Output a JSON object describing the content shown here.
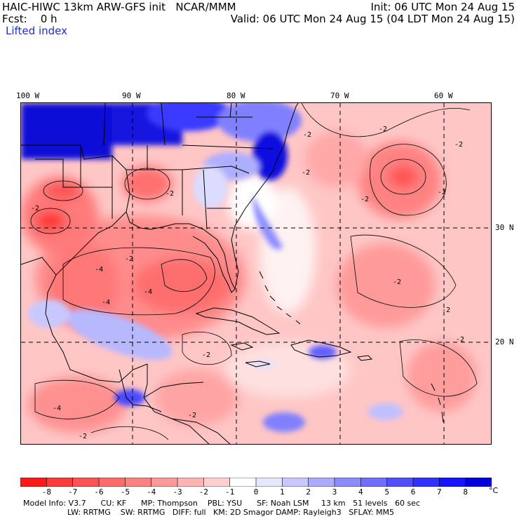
{
  "header": {
    "title": "HAIC-HIWC 13km ARW-GFS init   NCAR/MMM",
    "forecast": "Fcst:    0 h",
    "field": "Lifted index",
    "init": "Init: 06 UTC Mon 24 Aug 15",
    "valid": "Valid: 06 UTC Mon 24 Aug 15 (04 LDT Mon 24 Aug 15)"
  },
  "axes": {
    "longitude_labels": [
      "100 W",
      "90 W",
      "80 W",
      "70 W",
      "60 W"
    ],
    "latitude_labels": [
      "30 N",
      "20 N"
    ]
  },
  "contour_labels": [
    "-2",
    "-2",
    "-2",
    "-2",
    "-2",
    "-2",
    "-4",
    "-4",
    "-4",
    "-2",
    "-2",
    "-2",
    "-2",
    "-4",
    "-2",
    "-2",
    "-2",
    "-2",
    "-2"
  ],
  "colorbar": {
    "labels": [
      "-8",
      "-7",
      "-6",
      "-5",
      "-4",
      "-3",
      "-2",
      "-1",
      "0",
      "1",
      "2",
      "3",
      "4",
      "5",
      "6",
      "7",
      "8"
    ],
    "unit": "°C",
    "colors": [
      "#ff1a1a",
      "#ff3a3a",
      "#ff5252",
      "#ff6a6a",
      "#ff8282",
      "#ff9a9a",
      "#ffb4b4",
      "#ffd0d0",
      "#ffffff",
      "#e6e6ff",
      "#c8c8ff",
      "#aaaaff",
      "#8c8cff",
      "#6e6eff",
      "#5050ff",
      "#3232ff",
      "#1414ff",
      "#0000dd"
    ]
  },
  "model_info": {
    "line1": "Model Info: V3.7      CU: KF      MP: Thompson    PBL: YSU      SF: Noah LSM     13 km   51 levels   60 sec",
    "line2": "LW: RRTMG    SW: RRTMG   DIFF: full   KM: 2D Smagor DAMP: Rayleigh3   SFLAY: MM5"
  }
}
